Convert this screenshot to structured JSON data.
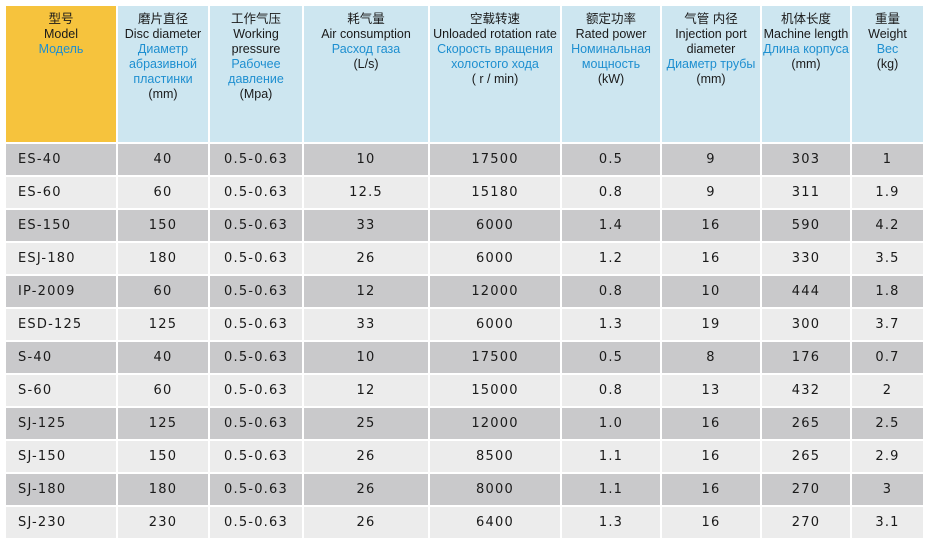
{
  "headers": [
    {
      "cn": "型号",
      "en": "Model",
      "ru": "Модель",
      "unit": ""
    },
    {
      "cn": "磨片直径",
      "en": "Disc diameter",
      "ru": "Диаметр абразивной пластинки",
      "unit": "(mm)"
    },
    {
      "cn": "工作气压",
      "en": "Working pressure",
      "ru": "Рабочее давление",
      "unit": "(Mpa)"
    },
    {
      "cn": "耗气量",
      "en": "Air consumption",
      "ru": "Расход газа",
      "unit": "(L/s)"
    },
    {
      "cn": "空载转速",
      "en": "Unloaded rotation rate",
      "ru": "Скорость вращения холостого хода",
      "unit": "( r / min)"
    },
    {
      "cn": "额定功率",
      "en": "Rated power",
      "ru": "Номинальная мощность",
      "unit": "(kW)"
    },
    {
      "cn": "气管 内径",
      "en": "Injection port diameter",
      "ru": "Диаметр трубы",
      "unit": "(mm)"
    },
    {
      "cn": "机体长度",
      "en": "Machine length",
      "ru": "Длина корпуса",
      "unit": "(mm)"
    },
    {
      "cn": "重量",
      "en": "Weight",
      "ru": "Вес",
      "unit": "(kg)"
    }
  ],
  "rows": [
    [
      "ES-40",
      "40",
      "0.5-0.63",
      "10",
      "17500",
      "0.5",
      "9",
      "303",
      "1"
    ],
    [
      "ES-60",
      "60",
      "0.5-0.63",
      "12.5",
      "15180",
      "0.8",
      "9",
      "311",
      "1.9"
    ],
    [
      "ES-150",
      "150",
      "0.5-0.63",
      "33",
      "6000",
      "1.4",
      "16",
      "590",
      "4.2"
    ],
    [
      "ESJ-180",
      "180",
      "0.5-0.63",
      "26",
      "6000",
      "1.2",
      "16",
      "330",
      "3.5"
    ],
    [
      "IP-2009",
      "60",
      "0.5-0.63",
      "12",
      "12000",
      "0.8",
      "10",
      "444",
      "1.8"
    ],
    [
      "ESD-125",
      "125",
      "0.5-0.63",
      "33",
      "6000",
      "1.3",
      "19",
      "300",
      "3.7"
    ],
    [
      "S-40",
      "40",
      "0.5-0.63",
      "10",
      "17500",
      "0.5",
      "8",
      "176",
      "0.7"
    ],
    [
      "S-60",
      "60",
      "0.5-0.63",
      "12",
      "15000",
      "0.8",
      "13",
      "432",
      "2"
    ],
    [
      "SJ-125",
      "125",
      "0.5-0.63",
      "25",
      "12000",
      "1.0",
      "16",
      "265",
      "2.5"
    ],
    [
      "SJ-150",
      "150",
      "0.5-0.63",
      "26",
      "8500",
      "1.1",
      "16",
      "265",
      "2.9"
    ],
    [
      "SJ-180",
      "180",
      "0.5-0.63",
      "26",
      "8000",
      "1.1",
      "16",
      "270",
      "3"
    ],
    [
      "SJ-230",
      "230",
      "0.5-0.63",
      "26",
      "6400",
      "1.3",
      "16",
      "270",
      "3.1"
    ]
  ],
  "colors": {
    "model_header": "#f6c33d",
    "header": "#cde6f0",
    "russian_text": "#1e8fd0",
    "row_dark": "#c9c9cb",
    "row_light": "#ececec"
  }
}
